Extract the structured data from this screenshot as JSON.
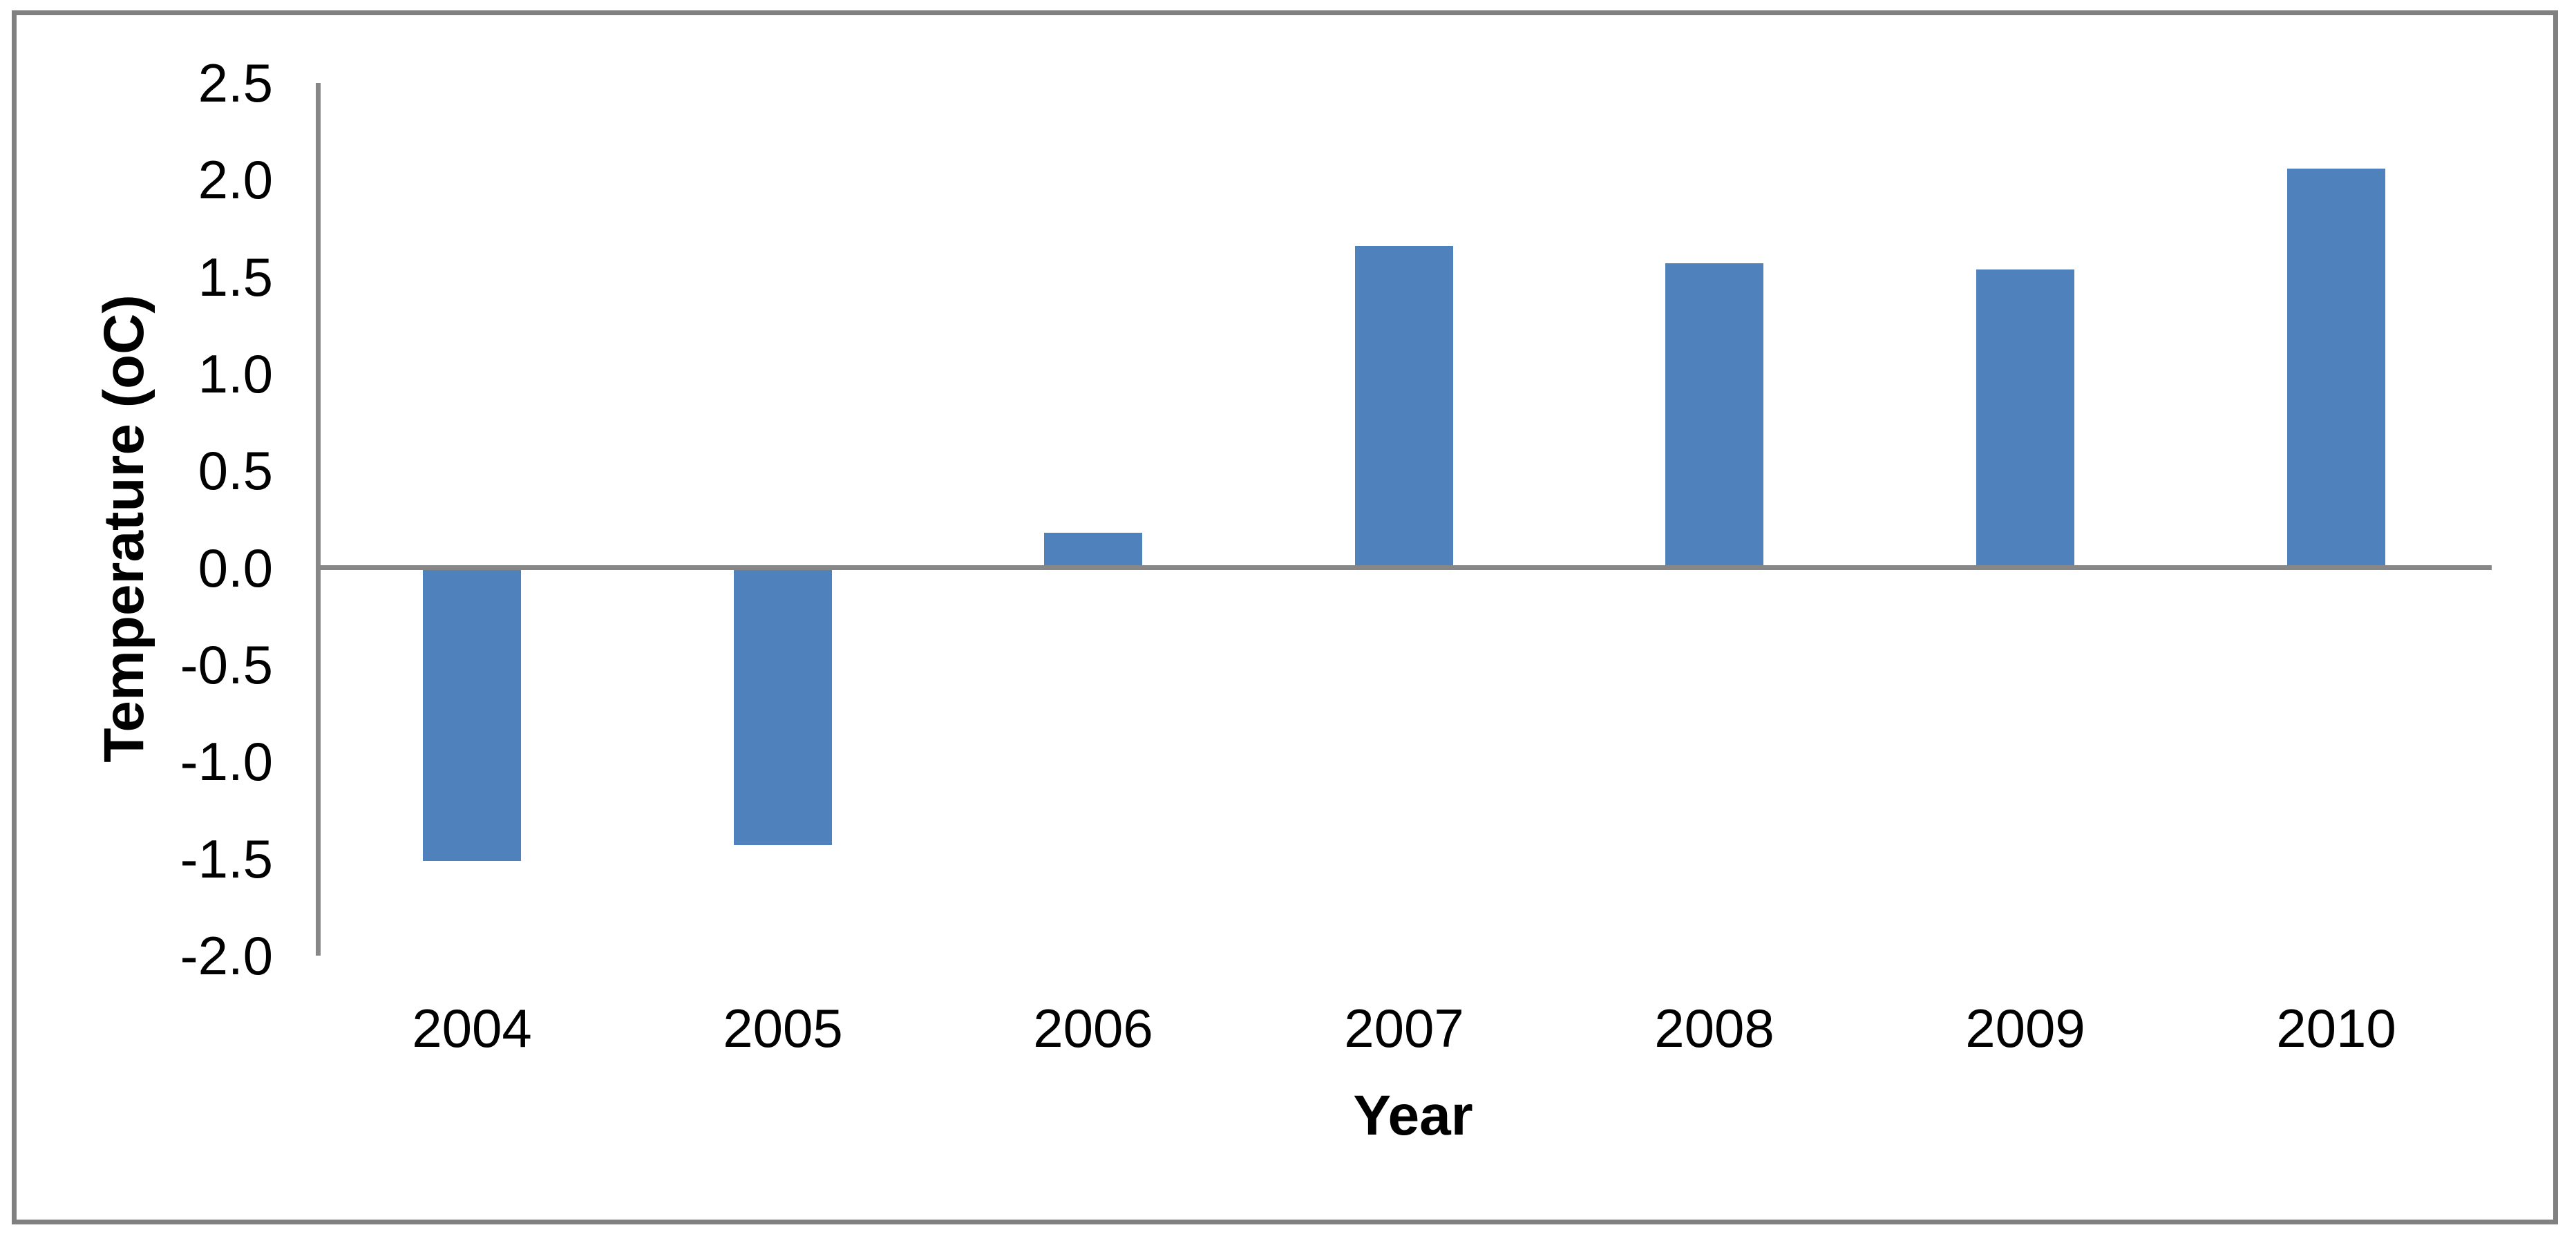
{
  "chart_data": {
    "type": "bar",
    "title": "",
    "xlabel": "Year",
    "ylabel": "Temperature (oC)",
    "categories": [
      "2004",
      "2005",
      "2006",
      "2007",
      "2008",
      "2009",
      "2010"
    ],
    "values": [
      -1.51,
      -1.43,
      0.18,
      1.66,
      1.57,
      1.54,
      2.06
    ],
    "ylim": [
      -2.0,
      2.5
    ],
    "ytick_step": 0.5,
    "ytick_labels": [
      "2.5",
      "2.0",
      "1.5",
      "1.0",
      "0.5",
      "0.0",
      "-0.5",
      "-1.0",
      "-1.5",
      "-2.0"
    ],
    "grid": "off",
    "legend": "none",
    "colors": {
      "bar_fill": "#4F81BD",
      "axis_line": "#878787",
      "outer_border": "#808080",
      "text": "#000000",
      "background": "#FFFFFF"
    }
  }
}
